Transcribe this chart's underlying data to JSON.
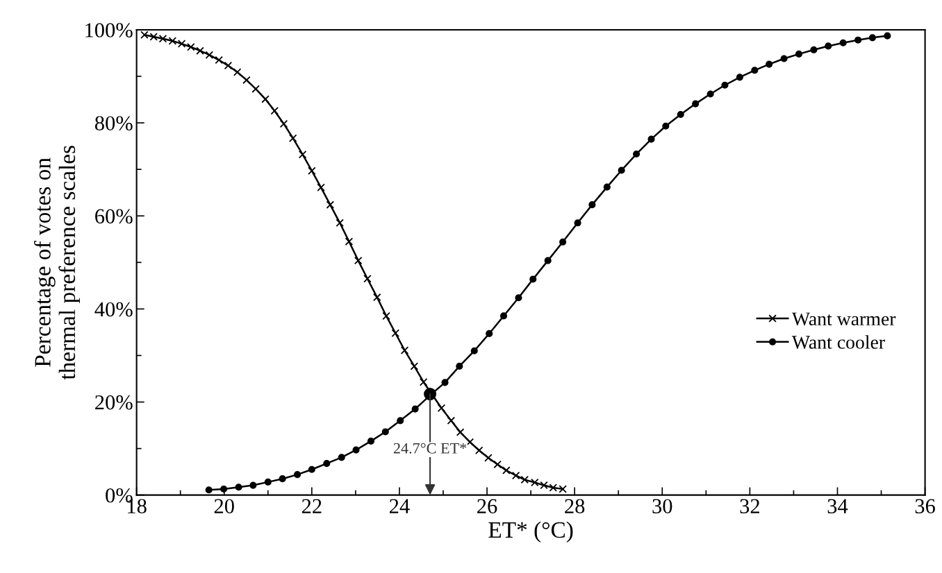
{
  "chart_data": {
    "type": "line",
    "xlabel": "ET* (°C)",
    "ylabel": "Percentage of votes on\nthermal preference scales",
    "xlim": [
      18,
      36
    ],
    "ylim": [
      0,
      100
    ],
    "xticks": [
      18,
      {
        "value": 19,
        "label": null
      },
      20,
      {
        "value": 21,
        "label": null
      },
      22,
      {
        "value": 23,
        "label": null
      },
      24,
      {
        "value": 25,
        "label": null
      },
      26,
      {
        "value": 27,
        "label": null
      },
      28,
      {
        "value": 29,
        "label": null
      },
      30,
      {
        "value": 31,
        "label": null
      },
      32,
      {
        "value": 33,
        "label": null
      },
      34,
      {
        "value": 35,
        "label": null
      },
      36
    ],
    "yticks": [
      {
        "value": 0,
        "label": "0%"
      },
      {
        "value": 10,
        "label": null
      },
      {
        "value": 20,
        "label": "20%"
      },
      {
        "value": 30,
        "label": null
      },
      {
        "value": 40,
        "label": "40%"
      },
      {
        "value": 50,
        "label": null
      },
      {
        "value": 60,
        "label": "60%"
      },
      {
        "value": 70,
        "label": null
      },
      {
        "value": 80,
        "label": "80%"
      },
      {
        "value": 90,
        "label": null
      },
      {
        "value": 100,
        "label": "100%"
      }
    ],
    "grid": false,
    "legend": "right",
    "line_style": "solid",
    "series": [
      {
        "name": "Want warmer",
        "color": "#000000",
        "marker": "cross",
        "x": [
          18.18,
          18.39,
          18.6,
          18.82,
          19.03,
          19.24,
          19.45,
          19.66,
          19.88,
          20.09,
          20.3,
          20.51,
          20.72,
          20.94,
          21.15,
          21.36,
          21.57,
          21.79,
          22.0,
          22.21,
          22.42,
          22.64,
          22.85,
          23.06,
          23.27,
          23.49,
          23.7,
          23.91,
          24.12,
          24.34,
          24.55,
          24.73,
          24.96,
          25.18,
          25.39,
          25.61,
          25.82,
          26.03,
          26.24,
          26.44,
          26.66,
          26.86,
          27.09,
          27.3,
          27.51,
          27.73
        ],
        "values": [
          98.9,
          98.5,
          98.1,
          97.6,
          97.0,
          96.3,
          95.5,
          94.6,
          93.5,
          92.3,
          90.9,
          89.2,
          87.3,
          85.1,
          82.6,
          79.8,
          76.7,
          73.2,
          69.7,
          66.1,
          62.4,
          58.5,
          54.5,
          50.4,
          46.5,
          42.5,
          38.5,
          34.8,
          31.1,
          27.7,
          24.3,
          null,
          18.7,
          16.0,
          13.5,
          11.4,
          9.6,
          8.0,
          6.6,
          5.3,
          4.2,
          3.3,
          2.7,
          2.1,
          1.6,
          1.3
        ]
      },
      {
        "name": "Want cooler",
        "color": "#000000",
        "marker": "circle",
        "x": [
          19.65,
          19.99,
          20.33,
          20.66,
          21.0,
          21.33,
          21.67,
          22.0,
          22.34,
          22.68,
          23.01,
          23.35,
          23.68,
          24.02,
          24.36,
          24.73,
          25.04,
          25.37,
          25.71,
          26.05,
          26.38,
          26.72,
          27.05,
          27.39,
          27.73,
          28.07,
          28.4,
          28.74,
          29.07,
          29.41,
          29.75,
          30.08,
          30.42,
          30.76,
          31.1,
          31.43,
          31.77,
          32.11,
          32.44,
          32.78,
          33.12,
          33.46,
          33.79,
          34.13,
          34.47,
          34.8,
          35.14
        ],
        "values": [
          1.1,
          1.3,
          1.7,
          2.1,
          2.8,
          3.5,
          4.4,
          5.5,
          6.8,
          8.1,
          9.7,
          11.6,
          13.6,
          16.0,
          18.5,
          21.7,
          24.2,
          27.7,
          31.0,
          34.7,
          38.5,
          42.4,
          46.4,
          50.4,
          54.4,
          58.5,
          62.4,
          66.2,
          69.8,
          73.3,
          76.5,
          79.3,
          81.8,
          84.1,
          86.2,
          88.1,
          89.8,
          91.3,
          92.6,
          93.8,
          94.8,
          95.7,
          96.5,
          97.2,
          97.8,
          98.3,
          98.7
        ]
      }
    ],
    "annotations": [
      {
        "text": "24.7°C ET*",
        "x": 24.7,
        "y": 21.7
      }
    ]
  }
}
